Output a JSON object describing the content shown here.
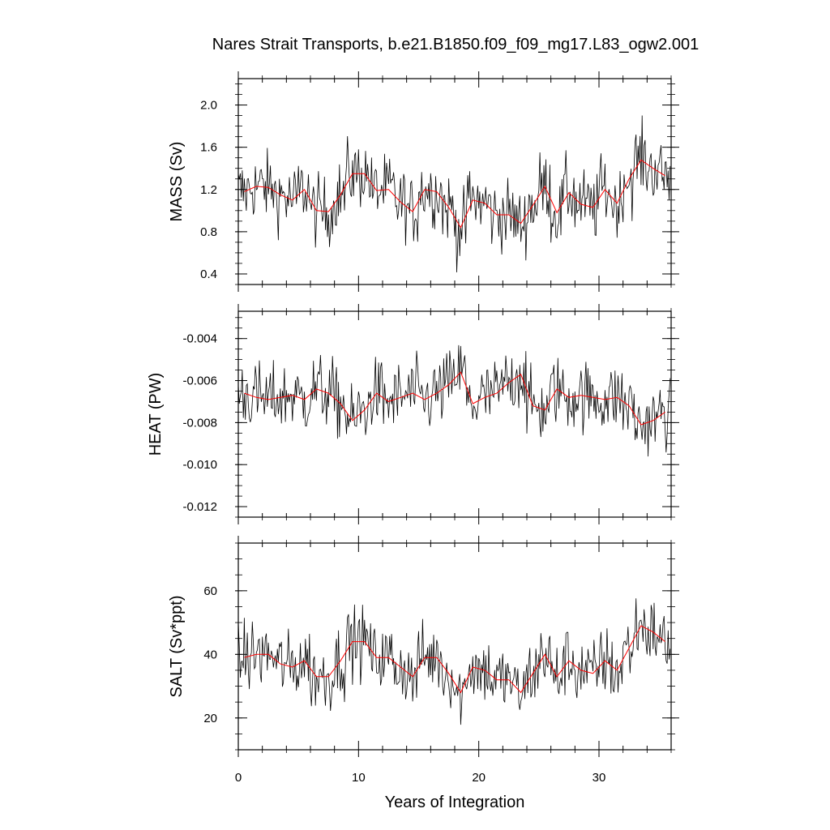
{
  "title": "Nares Strait Transports, b.e21.B1850.f09_f09_mg17.L83_ogw2.001",
  "colors": {
    "raw": "#000000",
    "smooth": "#ff0000",
    "frame": "#000000"
  },
  "chart_data": [
    {
      "type": "line",
      "ylabel": "MASS (Sv)",
      "xlabel": "",
      "xlim": [
        0,
        36
      ],
      "ylim": [
        0.3,
        2.25
      ],
      "yticks": [
        0.4,
        0.8,
        1.2,
        1.6,
        2.0
      ],
      "ytick_labels": [
        "0.4",
        "0.8",
        "1.2",
        "1.6",
        "2.0"
      ],
      "xticks": [
        0,
        10,
        20,
        30
      ],
      "grid": false,
      "annual_mean": {
        "x": [
          0.5,
          1.5,
          2.5,
          3.5,
          4.5,
          5.5,
          6.5,
          7.5,
          8.5,
          9.5,
          10.5,
          11.5,
          12.5,
          13.5,
          14.5,
          15.5,
          16.5,
          17.5,
          18.5,
          19.5,
          20.5,
          21.5,
          22.5,
          23.5,
          24.5,
          25.5,
          26.5,
          27.5,
          28.5,
          29.5,
          30.5,
          31.5,
          32.5,
          33.5,
          34.5,
          35.5
        ],
        "values": [
          1.18,
          1.23,
          1.22,
          1.15,
          1.1,
          1.2,
          1.0,
          0.99,
          1.15,
          1.35,
          1.35,
          1.19,
          1.2,
          1.08,
          0.99,
          1.2,
          1.18,
          1.03,
          0.84,
          1.1,
          1.07,
          0.96,
          0.96,
          0.88,
          1.05,
          1.23,
          0.98,
          1.17,
          1.06,
          1.03,
          1.2,
          1.07,
          1.3,
          1.48,
          1.4,
          1.33
        ]
      }
    },
    {
      "type": "line",
      "ylabel": "HEAT (PW)",
      "xlabel": "",
      "xlim": [
        0,
        36
      ],
      "ylim": [
        -0.0125,
        -0.0027
      ],
      "yticks": [
        -0.012,
        -0.01,
        -0.008,
        -0.006,
        -0.004
      ],
      "ytick_labels": [
        "-0.012",
        "-0.010",
        "-0.008",
        "-0.006",
        "-0.004"
      ],
      "xticks": [
        0,
        10,
        20,
        30
      ],
      "grid": false,
      "annual_mean": {
        "x": [
          0.5,
          1.5,
          2.5,
          3.5,
          4.5,
          5.5,
          6.5,
          7.5,
          8.5,
          9.5,
          10.5,
          11.5,
          12.5,
          13.5,
          14.5,
          15.5,
          16.5,
          17.5,
          18.5,
          19.5,
          20.5,
          21.5,
          22.5,
          23.5,
          24.5,
          25.5,
          26.5,
          27.5,
          28.5,
          29.5,
          30.5,
          31.5,
          32.5,
          33.5,
          34.5,
          35.5
        ],
        "values": [
          -0.0066,
          -0.0068,
          -0.0069,
          -0.0068,
          -0.0067,
          -0.0069,
          -0.0064,
          -0.0066,
          -0.0071,
          -0.0079,
          -0.0074,
          -0.0066,
          -0.007,
          -0.0068,
          -0.0066,
          -0.0069,
          -0.0066,
          -0.0062,
          -0.0056,
          -0.0071,
          -0.0068,
          -0.0066,
          -0.0061,
          -0.0057,
          -0.0072,
          -0.0074,
          -0.0064,
          -0.0068,
          -0.0067,
          -0.0068,
          -0.0069,
          -0.0068,
          -0.0072,
          -0.0081,
          -0.0079,
          -0.0075
        ]
      }
    },
    {
      "type": "line",
      "ylabel": "SALT (Sv*ppt)",
      "xlabel": "Years of Integration",
      "xlim": [
        0,
        36
      ],
      "ylim": [
        10,
        75
      ],
      "yticks": [
        20,
        40,
        60
      ],
      "ytick_labels": [
        "20",
        "40",
        "60"
      ],
      "xticks": [
        0,
        10,
        20,
        30
      ],
      "xtick_labels": [
        "0",
        "10",
        "20",
        "30"
      ],
      "grid": false,
      "annual_mean": {
        "x": [
          0.5,
          1.5,
          2.5,
          3.5,
          4.5,
          5.5,
          6.5,
          7.5,
          8.5,
          9.5,
          10.5,
          11.5,
          12.5,
          13.5,
          14.5,
          15.5,
          16.5,
          17.5,
          18.5,
          19.5,
          20.5,
          21.5,
          22.5,
          23.5,
          24.5,
          25.5,
          26.5,
          27.5,
          28.5,
          29.5,
          30.5,
          31.5,
          32.5,
          33.5,
          34.5,
          35.5
        ],
        "values": [
          39,
          40,
          40,
          37,
          36,
          38,
          33,
          33,
          38,
          44,
          44,
          39,
          39,
          36,
          33,
          39,
          39,
          34,
          28,
          36,
          35,
          32,
          32,
          28,
          34,
          40,
          33,
          38,
          35,
          34,
          38,
          35,
          42,
          49,
          47,
          44
        ]
      }
    }
  ]
}
